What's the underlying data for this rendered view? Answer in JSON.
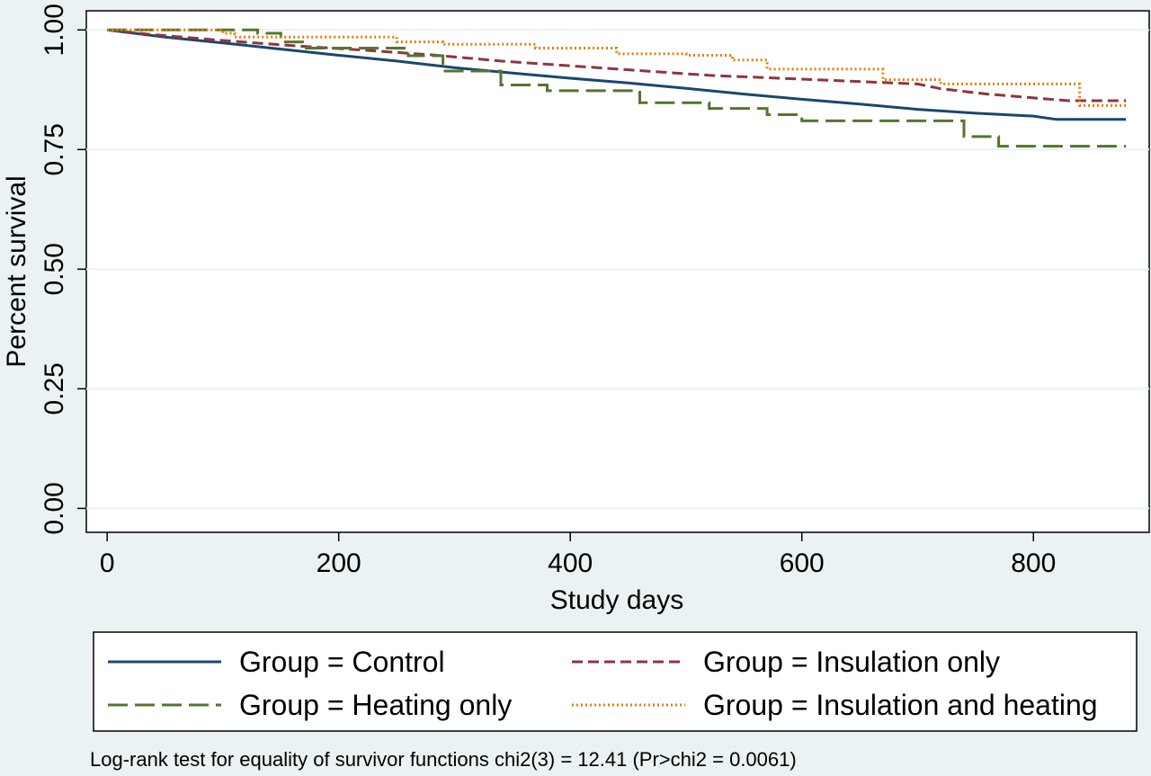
{
  "chart_data": {
    "type": "line",
    "title": "",
    "xlabel": "Study days",
    "ylabel": "Percent survival",
    "xlim": [
      -18,
      900
    ],
    "ylim": [
      -0.05,
      1.04
    ],
    "x_ticks": [
      0,
      200,
      400,
      600,
      800
    ],
    "x_tick_labels": [
      "0",
      "200",
      "400",
      "600",
      "800"
    ],
    "y_ticks": [
      0,
      0.25,
      0.5,
      0.75,
      1.0
    ],
    "y_tick_labels": [
      "0.00",
      "0.25",
      "0.50",
      "0.75",
      "1.00"
    ],
    "grid": "horizontal",
    "legend_position": "bottom",
    "series": [
      {
        "name": "Group = Control",
        "color": "#1a476f",
        "dash": "solid",
        "points": [
          [
            0,
            1.0
          ],
          [
            50,
            0.985
          ],
          [
            100,
            0.973
          ],
          [
            150,
            0.96
          ],
          [
            200,
            0.947
          ],
          [
            250,
            0.935
          ],
          [
            300,
            0.921
          ],
          [
            350,
            0.91
          ],
          [
            400,
            0.899
          ],
          [
            450,
            0.889
          ],
          [
            500,
            0.878
          ],
          [
            550,
            0.866
          ],
          [
            600,
            0.855
          ],
          [
            650,
            0.845
          ],
          [
            700,
            0.834
          ],
          [
            750,
            0.826
          ],
          [
            800,
            0.82
          ],
          [
            820,
            0.813
          ],
          [
            880,
            0.813
          ]
        ]
      },
      {
        "name": "Group = Insulation only",
        "color": "#90353b",
        "dash": "medium",
        "points": [
          [
            0,
            1.0
          ],
          [
            40,
            0.99
          ],
          [
            100,
            0.978
          ],
          [
            160,
            0.967
          ],
          [
            220,
            0.958
          ],
          [
            280,
            0.948
          ],
          [
            340,
            0.935
          ],
          [
            400,
            0.925
          ],
          [
            460,
            0.915
          ],
          [
            520,
            0.905
          ],
          [
            580,
            0.899
          ],
          [
            640,
            0.893
          ],
          [
            700,
            0.887
          ],
          [
            720,
            0.877
          ],
          [
            760,
            0.866
          ],
          [
            830,
            0.852
          ],
          [
            880,
            0.852
          ]
        ]
      },
      {
        "name": "Group = Heating only",
        "color": "#55752f",
        "dash": "long",
        "points": [
          [
            0,
            1.0
          ],
          [
            130,
            1.0
          ],
          [
            130,
            0.993
          ],
          [
            150,
            0.993
          ],
          [
            150,
            0.975
          ],
          [
            170,
            0.975
          ],
          [
            170,
            0.962
          ],
          [
            260,
            0.962
          ],
          [
            260,
            0.946
          ],
          [
            290,
            0.946
          ],
          [
            290,
            0.914
          ],
          [
            340,
            0.914
          ],
          [
            340,
            0.885
          ],
          [
            380,
            0.885
          ],
          [
            380,
            0.873
          ],
          [
            460,
            0.873
          ],
          [
            460,
            0.848
          ],
          [
            520,
            0.848
          ],
          [
            520,
            0.836
          ],
          [
            570,
            0.836
          ],
          [
            570,
            0.823
          ],
          [
            600,
            0.823
          ],
          [
            600,
            0.81
          ],
          [
            740,
            0.81
          ],
          [
            740,
            0.777
          ],
          [
            770,
            0.777
          ],
          [
            770,
            0.757
          ],
          [
            880,
            0.757
          ]
        ]
      },
      {
        "name": "Group = Insulation and heating",
        "color": "#e37e00",
        "dash": "dotted",
        "points": [
          [
            0,
            1.0
          ],
          [
            100,
            1.0
          ],
          [
            100,
            0.993
          ],
          [
            110,
            0.993
          ],
          [
            110,
            0.985
          ],
          [
            250,
            0.985
          ],
          [
            250,
            0.975
          ],
          [
            290,
            0.975
          ],
          [
            290,
            0.97
          ],
          [
            370,
            0.97
          ],
          [
            370,
            0.962
          ],
          [
            440,
            0.962
          ],
          [
            440,
            0.95
          ],
          [
            500,
            0.95
          ],
          [
            500,
            0.947
          ],
          [
            540,
            0.947
          ],
          [
            540,
            0.937
          ],
          [
            570,
            0.937
          ],
          [
            570,
            0.918
          ],
          [
            670,
            0.918
          ],
          [
            670,
            0.896
          ],
          [
            720,
            0.896
          ],
          [
            720,
            0.887
          ],
          [
            840,
            0.887
          ],
          [
            840,
            0.842
          ],
          [
            880,
            0.842
          ]
        ]
      }
    ],
    "annotation": "Log-rank test for equality of survivor functions chi2(3) = 12.41 (Pr>chi2 = 0.0061)"
  }
}
